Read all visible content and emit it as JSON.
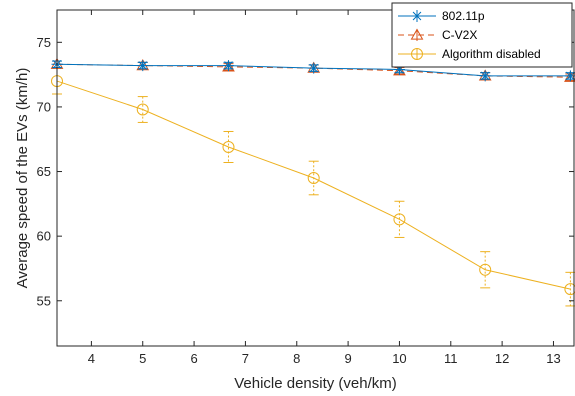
{
  "chart_data": {
    "type": "line",
    "xlabel": "Vehicle density (veh/km)",
    "ylabel": "Average speed of the EVs (km/h)",
    "xlim": [
      3.33,
      13.4
    ],
    "ylim": [
      51.5,
      77.5
    ],
    "xticks": [
      4,
      5,
      6,
      7,
      8,
      9,
      10,
      11,
      12,
      13
    ],
    "yticks": [
      55,
      60,
      65,
      70,
      75
    ],
    "grid": false,
    "box": true,
    "legend_location": "top-right",
    "x": [
      3.33,
      5.0,
      6.67,
      8.33,
      10.0,
      11.67,
      13.33
    ],
    "series": [
      {
        "name": "802.11p",
        "color": "#0072bd",
        "line_style": "solid",
        "marker": "star",
        "values": [
          73.3,
          73.2,
          73.2,
          73.0,
          72.9,
          72.4,
          72.4
        ],
        "error": [
          0.25,
          0.25,
          0.25,
          0.25,
          0.25,
          0.25,
          0.25
        ]
      },
      {
        "name": "C-V2X",
        "color": "#d95319",
        "line_style": "dashed",
        "marker": "triangle",
        "values": [
          73.3,
          73.2,
          73.1,
          73.0,
          72.8,
          72.4,
          72.3
        ],
        "error": [
          0.25,
          0.25,
          0.25,
          0.25,
          0.25,
          0.25,
          0.25
        ]
      },
      {
        "name": "Algorithm disabled",
        "color": "#edb120",
        "line_style": "solid",
        "marker": "circle",
        "values": [
          72.0,
          69.8,
          66.9,
          64.5,
          61.3,
          57.4,
          55.9
        ],
        "error": [
          1.0,
          1.0,
          1.2,
          1.3,
          1.4,
          1.4,
          1.3
        ]
      }
    ]
  }
}
